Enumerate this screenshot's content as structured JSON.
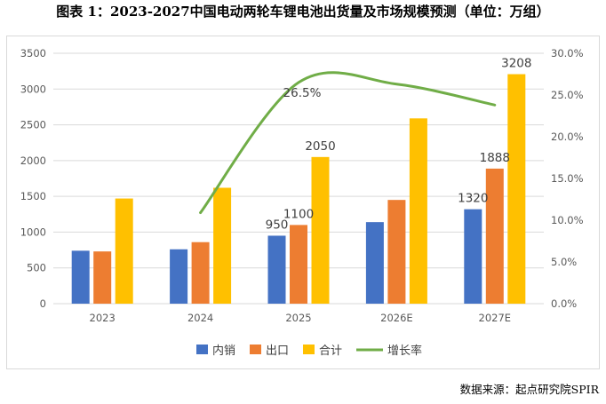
{
  "title": "图表 1：2023-2027中国电动两轮车锂电池出货量及市场规模预测（单位：万组）",
  "source": "数据来源：起点研究院SPIR",
  "chart_data": {
    "type": "bar",
    "categories": [
      "2023",
      "2024",
      "2025",
      "2026E",
      "2027E"
    ],
    "series": [
      {
        "name": "内销",
        "color": "#4472C4",
        "values": [
          740,
          760,
          950,
          1140,
          1320
        ]
      },
      {
        "name": "出口",
        "color": "#ED7D31",
        "values": [
          730,
          860,
          1100,
          1450,
          1888
        ]
      },
      {
        "name": "合计",
        "color": "#FFC000",
        "values": [
          1470,
          1620,
          2050,
          2590,
          3208
        ]
      }
    ],
    "line_series": {
      "name": "增长率",
      "color": "#70AD47",
      "axis": "right",
      "points": [
        {
          "category": "2024",
          "value": 0.109
        },
        {
          "category": "2025",
          "value": 0.265
        },
        {
          "category": "2026E",
          "value": 0.263
        },
        {
          "category": "2027E",
          "value": 0.238
        }
      ]
    },
    "bar_labels": [
      {
        "series": 0,
        "category": 2,
        "text": "950"
      },
      {
        "series": 1,
        "category": 2,
        "text": "1100"
      },
      {
        "series": 2,
        "category": 2,
        "text": "2050"
      },
      {
        "series": 0,
        "category": 4,
        "text": "1320"
      },
      {
        "series": 1,
        "category": 4,
        "text": "1888"
      },
      {
        "series": 2,
        "category": 4,
        "text": "3208"
      }
    ],
    "line_label": {
      "category": 2,
      "text": "26.5%"
    },
    "ylim": [
      0,
      3500
    ],
    "yticks": [
      "0",
      "500",
      "1000",
      "1500",
      "2000",
      "2500",
      "3000",
      "3500"
    ],
    "y2lim": [
      0,
      0.3
    ],
    "y2ticks": [
      "0.0%",
      "5.0%",
      "10.0%",
      "15.0%",
      "20.0%",
      "25.0%",
      "30.0%"
    ],
    "grid": true,
    "legend_position": "bottom"
  }
}
